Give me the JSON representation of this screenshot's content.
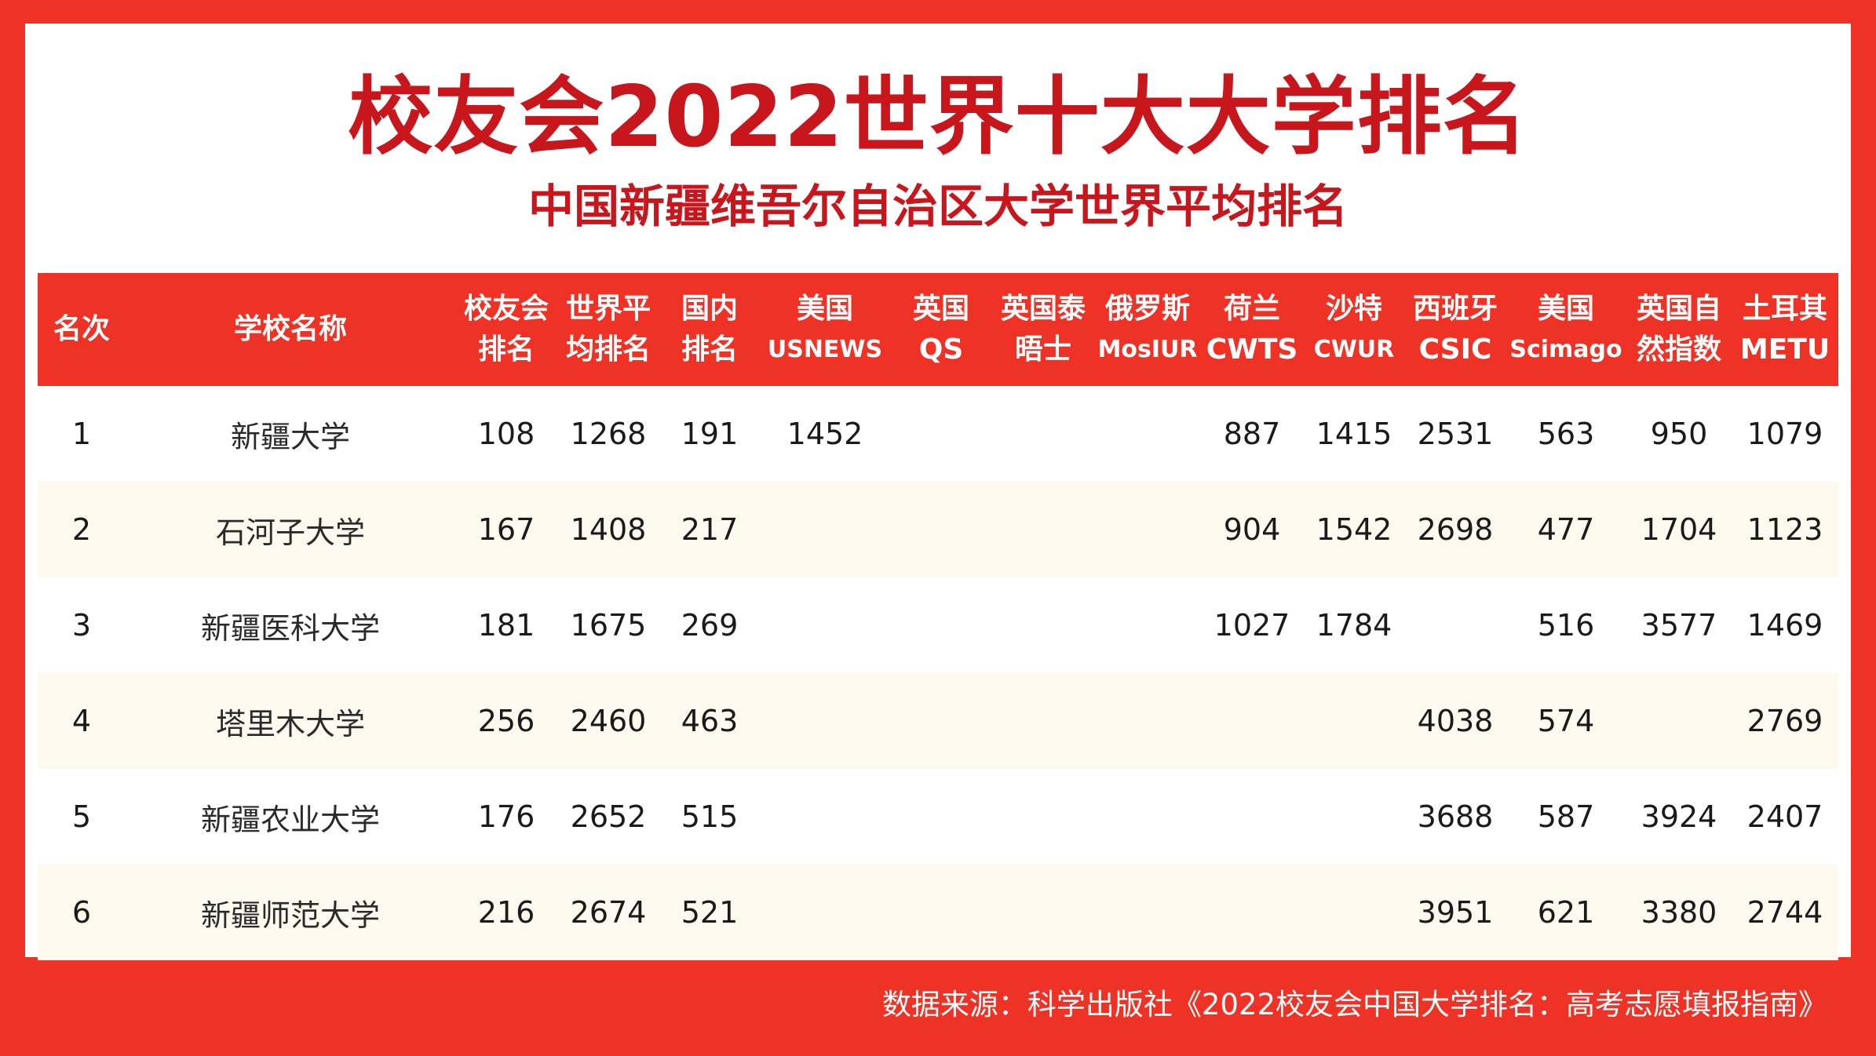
{
  "title": "校友会2022世界十大大学排名",
  "subtitle": "中国新疆维吾尔自治区大学世界平均排名",
  "columns": [
    {
      "key": "rank",
      "l1": "名次",
      "l2": ""
    },
    {
      "key": "school",
      "l1": "学校名称",
      "l2": ""
    },
    {
      "key": "xyh",
      "l1": "校友会",
      "l2": "排名"
    },
    {
      "key": "world_avg",
      "l1": "世界平",
      "l2": "均排名"
    },
    {
      "key": "domestic",
      "l1": "国内",
      "l2": "排名"
    },
    {
      "key": "usnews",
      "l1": "美国",
      "l2": "USNEWS"
    },
    {
      "key": "qs",
      "l1": "英国",
      "l2": "QS"
    },
    {
      "key": "the",
      "l1": "英国泰",
      "l2": "晤士"
    },
    {
      "key": "mosiur",
      "l1": "俄罗斯",
      "l2": "MosIUR"
    },
    {
      "key": "cwts",
      "l1": "荷兰",
      "l2": "CWTS"
    },
    {
      "key": "cwur",
      "l1": "沙特",
      "l2": "CWUR"
    },
    {
      "key": "csic",
      "l1": "西班牙",
      "l2": "CSIC"
    },
    {
      "key": "scimago",
      "l1": "美国",
      "l2": "Scimago"
    },
    {
      "key": "nature",
      "l1": "英国自",
      "l2": "然指数"
    },
    {
      "key": "metu",
      "l1": "土耳其",
      "l2": "METU"
    }
  ],
  "rows": [
    {
      "rank": "1",
      "school": "新疆大学",
      "xyh": "108",
      "world_avg": "1268",
      "domestic": "191",
      "usnews": "1452",
      "qs": "",
      "the": "",
      "mosiur": "",
      "cwts": "887",
      "cwur": "1415",
      "csic": "2531",
      "scimago": "563",
      "nature": "950",
      "metu": "1079"
    },
    {
      "rank": "2",
      "school": "石河子大学",
      "xyh": "167",
      "world_avg": "1408",
      "domestic": "217",
      "usnews": "",
      "qs": "",
      "the": "",
      "mosiur": "",
      "cwts": "904",
      "cwur": "1542",
      "csic": "2698",
      "scimago": "477",
      "nature": "1704",
      "metu": "1123"
    },
    {
      "rank": "3",
      "school": "新疆医科大学",
      "xyh": "181",
      "world_avg": "1675",
      "domestic": "269",
      "usnews": "",
      "qs": "",
      "the": "",
      "mosiur": "",
      "cwts": "1027",
      "cwur": "1784",
      "csic": "",
      "scimago": "516",
      "nature": "3577",
      "metu": "1469"
    },
    {
      "rank": "4",
      "school": "塔里木大学",
      "xyh": "256",
      "world_avg": "2460",
      "domestic": "463",
      "usnews": "",
      "qs": "",
      "the": "",
      "mosiur": "",
      "cwts": "",
      "cwur": "",
      "csic": "4038",
      "scimago": "574",
      "nature": "",
      "metu": "2769"
    },
    {
      "rank": "5",
      "school": "新疆农业大学",
      "xyh": "176",
      "world_avg": "2652",
      "domestic": "515",
      "usnews": "",
      "qs": "",
      "the": "",
      "mosiur": "",
      "cwts": "",
      "cwur": "",
      "csic": "3688",
      "scimago": "587",
      "nature": "3924",
      "metu": "2407"
    },
    {
      "rank": "6",
      "school": "新疆师范大学",
      "xyh": "216",
      "world_avg": "2674",
      "domestic": "521",
      "usnews": "",
      "qs": "",
      "the": "",
      "mosiur": "",
      "cwts": "",
      "cwur": "",
      "csic": "3951",
      "scimago": "621",
      "nature": "3380",
      "metu": "2744"
    }
  ],
  "footer": "数据来源：科学出版社《2022校友会中国大学排名：高考志愿填报指南》",
  "colors": {
    "brand_red": "#ef3226",
    "title_red": "#c8161d",
    "stripe": "#fdf9ef"
  }
}
